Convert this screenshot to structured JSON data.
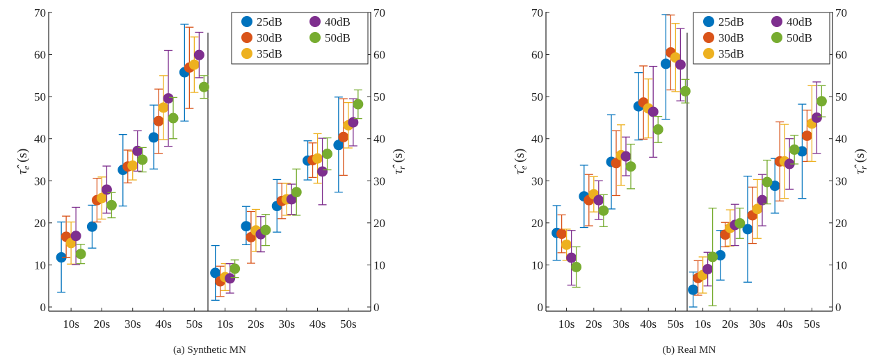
{
  "chart_data": [
    {
      "type": "scatter",
      "caption": "(a) Synthetic MN",
      "ylabel_left": "τ̂e (s)",
      "ylabel_right": "τ̂r (s)",
      "ylim": [
        0,
        70
      ],
      "yticks": [
        0,
        10,
        20,
        30,
        40,
        50,
        60,
        70
      ],
      "categories": [
        "10s",
        "20s",
        "30s",
        "40s",
        "50s",
        "10s",
        "20s",
        "30s",
        "40s",
        "50s"
      ],
      "legend": {
        "position": "top-right",
        "entries": [
          "25dB",
          "30dB",
          "35dB",
          "40dB",
          "50dB"
        ]
      },
      "series": [
        {
          "name": "25dB",
          "color": "#0072BD",
          "values": [
            11.8,
            19.1,
            32.6,
            40.3,
            55.8,
            8.1,
            19.2,
            24.0,
            34.8,
            38.5
          ],
          "lower": [
            3.5,
            14.0,
            24.0,
            32.8,
            44.2,
            1.6,
            14.8,
            17.8,
            30.2,
            27.3
          ],
          "upper": [
            20.2,
            24.2,
            41.0,
            48.0,
            67.2,
            14.6,
            23.9,
            30.3,
            39.5,
            49.9
          ]
        },
        {
          "name": "30dB",
          "color": "#D95319",
          "values": [
            16.7,
            25.4,
            33.4,
            44.2,
            56.9,
            6.1,
            16.6,
            25.2,
            34.9,
            40.4
          ],
          "lower": [
            11.8,
            20.2,
            29.5,
            36.5,
            47.2,
            2.5,
            10.4,
            21.0,
            30.8,
            31.3
          ],
          "upper": [
            21.6,
            30.6,
            37.3,
            51.8,
            66.5,
            9.7,
            22.7,
            29.4,
            39.0,
            49.5
          ]
        },
        {
          "name": "35dB",
          "color": "#EDB120",
          "values": [
            15.2,
            25.9,
            33.6,
            47.4,
            57.6,
            7.1,
            18.2,
            25.6,
            35.3,
            43.2
          ],
          "lower": [
            10.2,
            20.9,
            30.2,
            39.8,
            51.0,
            3.9,
            13.2,
            21.8,
            29.4,
            37.8
          ],
          "upper": [
            20.2,
            30.9,
            37.0,
            55.0,
            64.2,
            10.3,
            23.2,
            29.4,
            41.2,
            48.6
          ]
        },
        {
          "name": "40dB",
          "color": "#7E2F8E",
          "values": [
            16.9,
            27.9,
            37.1,
            49.6,
            59.9,
            6.8,
            17.3,
            25.6,
            32.2,
            43.9
          ],
          "lower": [
            10.1,
            22.3,
            32.3,
            38.2,
            54.5,
            3.3,
            13.1,
            22.0,
            24.3,
            38.3
          ],
          "upper": [
            23.7,
            33.5,
            41.9,
            61.0,
            65.3,
            10.3,
            21.5,
            29.2,
            40.1,
            49.5
          ]
        },
        {
          "name": "50dB",
          "color": "#77AC30",
          "values": [
            12.6,
            24.2,
            35.0,
            44.9,
            52.3,
            9.1,
            18.3,
            27.3,
            36.4,
            48.2
          ],
          "lower": [
            10.3,
            21.2,
            32.1,
            40.0,
            49.6,
            7.0,
            14.6,
            21.8,
            32.6,
            44.8
          ],
          "upper": [
            14.9,
            27.2,
            37.9,
            49.8,
            55.0,
            11.2,
            22.0,
            32.8,
            40.2,
            51.6
          ]
        }
      ]
    },
    {
      "type": "scatter",
      "caption": "(b) Real MN",
      "ylabel_left": "τ̂e (s)",
      "ylabel_right": "τ̂r (s)",
      "ylim": [
        0,
        70
      ],
      "yticks": [
        0,
        10,
        20,
        30,
        40,
        50,
        60,
        70
      ],
      "categories": [
        "10s",
        "20s",
        "30s",
        "40s",
        "50s",
        "10s",
        "20s",
        "30s",
        "40s",
        "50s"
      ],
      "legend": {
        "position": "top-right",
        "entries": [
          "25dB",
          "30dB",
          "35dB",
          "40dB",
          "50dB"
        ]
      },
      "series": [
        {
          "name": "25dB",
          "color": "#0072BD",
          "values": [
            17.6,
            26.3,
            34.5,
            47.7,
            57.8,
            4.1,
            12.3,
            18.5,
            28.8,
            37.0
          ],
          "lower": [
            11.1,
            18.9,
            23.3,
            39.7,
            44.6,
            0.0,
            6.4,
            5.9,
            22.3,
            25.8
          ],
          "upper": [
            24.1,
            33.7,
            45.7,
            55.7,
            69.5,
            8.3,
            18.2,
            31.1,
            35.3,
            48.2
          ]
        },
        {
          "name": "30dB",
          "color": "#D95319",
          "values": [
            17.4,
            25.4,
            34.2,
            48.6,
            60.5,
            6.9,
            17.2,
            21.8,
            34.6,
            40.7
          ],
          "lower": [
            12.9,
            19.3,
            26.5,
            39.9,
            51.6,
            2.8,
            14.3,
            15.1,
            25.2,
            34.6
          ],
          "upper": [
            21.9,
            31.5,
            41.9,
            57.3,
            69.4,
            11.0,
            20.1,
            28.5,
            44.0,
            46.8
          ]
        },
        {
          "name": "35dB",
          "color": "#EDB120",
          "values": [
            14.8,
            26.8,
            36.1,
            47.2,
            59.3,
            7.6,
            18.8,
            23.3,
            34.6,
            43.6
          ],
          "lower": [
            11.1,
            22.6,
            28.9,
            40.2,
            51.2,
            3.3,
            14.5,
            16.3,
            25.8,
            34.6
          ],
          "upper": [
            18.5,
            31.0,
            43.3,
            54.2,
            67.4,
            11.9,
            23.1,
            30.3,
            43.4,
            52.6
          ]
        },
        {
          "name": "40dB",
          "color": "#7E2F8E",
          "values": [
            11.7,
            25.4,
            35.8,
            46.4,
            57.6,
            9.0,
            19.5,
            25.4,
            34.0,
            45.0
          ],
          "lower": [
            5.2,
            20.8,
            31.2,
            35.6,
            49.0,
            5.0,
            14.6,
            19.3,
            28.0,
            36.5
          ],
          "upper": [
            18.2,
            30.0,
            40.4,
            57.2,
            66.2,
            13.0,
            24.4,
            31.5,
            40.0,
            53.5
          ]
        },
        {
          "name": "50dB",
          "color": "#77AC30",
          "values": [
            9.5,
            22.9,
            33.4,
            42.2,
            51.3,
            11.9,
            19.9,
            29.7,
            37.4,
            48.9
          ],
          "lower": [
            4.7,
            19.1,
            28.1,
            39.1,
            48.5,
            0.3,
            16.3,
            24.5,
            34.0,
            45.2
          ],
          "upper": [
            14.3,
            26.7,
            38.7,
            45.3,
            54.1,
            23.5,
            23.5,
            34.9,
            40.8,
            52.6
          ]
        }
      ]
    }
  ]
}
